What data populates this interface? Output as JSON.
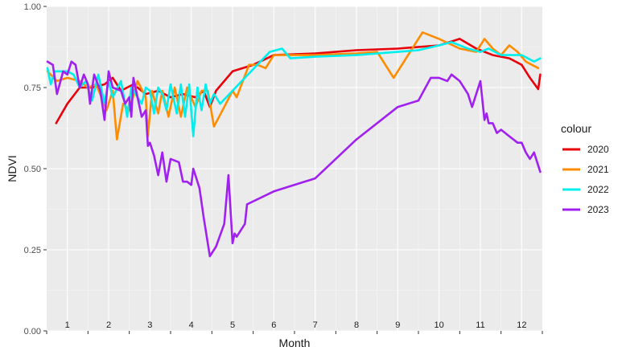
{
  "chart_data": {
    "type": "line",
    "xlabel": "Month",
    "ylabel": "NDVI",
    "xlim": [
      0.5,
      12.5
    ],
    "ylim": [
      0,
      1
    ],
    "x_ticks": [
      1,
      2,
      3,
      4,
      5,
      6,
      7,
      8,
      9,
      10,
      11,
      12
    ],
    "x_tick_labels": [
      "1",
      "2",
      "3",
      "4",
      "5",
      "6",
      "7",
      "8",
      "9",
      "10",
      "11",
      "12"
    ],
    "y_ticks": [
      0,
      0.25,
      0.5,
      0.75,
      1
    ],
    "y_tick_labels": [
      "0.00",
      "0.25",
      "0.50",
      "0.75",
      "1.00"
    ],
    "grid": true,
    "legend_title": "colour",
    "legend_position": "right",
    "series": [
      {
        "name": "2020",
        "color": "#e8000b",
        "points": [
          [
            0.73,
            0.64
          ],
          [
            1.0,
            0.7
          ],
          [
            1.3,
            0.75
          ],
          [
            1.6,
            0.75
          ],
          [
            1.9,
            0.76
          ],
          [
            2.1,
            0.78
          ],
          [
            2.3,
            0.74
          ],
          [
            2.6,
            0.76
          ],
          [
            2.9,
            0.73
          ],
          [
            3.2,
            0.74
          ],
          [
            3.5,
            0.72
          ],
          [
            3.8,
            0.73
          ],
          [
            4.1,
            0.72
          ],
          [
            4.3,
            0.74
          ],
          [
            4.45,
            0.69
          ],
          [
            4.6,
            0.74
          ],
          [
            5.0,
            0.8
          ],
          [
            5.5,
            0.82
          ],
          [
            6.0,
            0.85
          ],
          [
            7.0,
            0.855
          ],
          [
            8.0,
            0.865
          ],
          [
            9.0,
            0.87
          ],
          [
            10.0,
            0.88
          ],
          [
            10.5,
            0.9
          ],
          [
            10.9,
            0.87
          ],
          [
            11.3,
            0.85
          ],
          [
            11.7,
            0.84
          ],
          [
            12.0,
            0.82
          ],
          [
            12.2,
            0.78
          ],
          [
            12.4,
            0.745
          ],
          [
            12.45,
            0.79
          ]
        ]
      },
      {
        "name": "2021",
        "color": "#ff8c00",
        "points": [
          [
            0.52,
            0.8
          ],
          [
            0.75,
            0.77
          ],
          [
            1.0,
            0.78
          ],
          [
            1.3,
            0.77
          ],
          [
            1.5,
            0.75
          ],
          [
            1.7,
            0.76
          ],
          [
            1.95,
            0.68
          ],
          [
            2.1,
            0.74
          ],
          [
            2.2,
            0.59
          ],
          [
            2.35,
            0.7
          ],
          [
            2.5,
            0.68
          ],
          [
            2.7,
            0.77
          ],
          [
            2.9,
            0.72
          ],
          [
            2.95,
            0.6
          ],
          [
            3.05,
            0.74
          ],
          [
            3.2,
            0.67
          ],
          [
            3.3,
            0.74
          ],
          [
            3.45,
            0.66
          ],
          [
            3.6,
            0.75
          ],
          [
            3.75,
            0.66
          ],
          [
            3.9,
            0.75
          ],
          [
            4.1,
            0.69
          ],
          [
            4.25,
            0.74
          ],
          [
            4.4,
            0.74
          ],
          [
            4.55,
            0.63
          ],
          [
            4.8,
            0.69
          ],
          [
            5.0,
            0.74
          ],
          [
            5.1,
            0.72
          ],
          [
            5.4,
            0.82
          ],
          [
            5.6,
            0.82
          ],
          [
            5.8,
            0.81
          ],
          [
            6.0,
            0.85
          ],
          [
            7.0,
            0.85
          ],
          [
            8.0,
            0.855
          ],
          [
            8.5,
            0.86
          ],
          [
            8.9,
            0.78
          ],
          [
            9.3,
            0.86
          ],
          [
            9.6,
            0.92
          ],
          [
            10.0,
            0.9
          ],
          [
            10.5,
            0.87
          ],
          [
            10.9,
            0.86
          ],
          [
            11.1,
            0.9
          ],
          [
            11.3,
            0.87
          ],
          [
            11.5,
            0.85
          ],
          [
            11.7,
            0.88
          ],
          [
            11.9,
            0.86
          ],
          [
            12.1,
            0.83
          ],
          [
            12.4,
            0.81
          ]
        ]
      },
      {
        "name": "2022",
        "color": "#00eeee",
        "points": [
          [
            0.52,
            0.81
          ],
          [
            0.6,
            0.76
          ],
          [
            0.7,
            0.8
          ],
          [
            1.0,
            0.8
          ],
          [
            1.15,
            0.79
          ],
          [
            1.3,
            0.75
          ],
          [
            1.45,
            0.77
          ],
          [
            1.6,
            0.71
          ],
          [
            1.75,
            0.79
          ],
          [
            1.9,
            0.7
          ],
          [
            2.0,
            0.77
          ],
          [
            2.1,
            0.72
          ],
          [
            2.3,
            0.77
          ],
          [
            2.45,
            0.66
          ],
          [
            2.55,
            0.75
          ],
          [
            2.7,
            0.72
          ],
          [
            2.8,
            0.7
          ],
          [
            2.9,
            0.75
          ],
          [
            3.0,
            0.74
          ],
          [
            3.1,
            0.67
          ],
          [
            3.2,
            0.75
          ],
          [
            3.3,
            0.73
          ],
          [
            3.4,
            0.68
          ],
          [
            3.5,
            0.76
          ],
          [
            3.65,
            0.67
          ],
          [
            3.75,
            0.76
          ],
          [
            3.85,
            0.66
          ],
          [
            3.95,
            0.76
          ],
          [
            4.05,
            0.6
          ],
          [
            4.15,
            0.75
          ],
          [
            4.25,
            0.68
          ],
          [
            4.35,
            0.76
          ],
          [
            4.45,
            0.7
          ],
          [
            4.55,
            0.73
          ],
          [
            4.7,
            0.7
          ],
          [
            5.0,
            0.74
          ],
          [
            5.3,
            0.78
          ],
          [
            5.6,
            0.82
          ],
          [
            5.9,
            0.86
          ],
          [
            6.2,
            0.87
          ],
          [
            6.4,
            0.84
          ],
          [
            7.0,
            0.845
          ],
          [
            8.0,
            0.85
          ],
          [
            9.0,
            0.86
          ],
          [
            9.5,
            0.865
          ],
          [
            10.0,
            0.88
          ],
          [
            10.3,
            0.89
          ],
          [
            10.7,
            0.87
          ],
          [
            11.0,
            0.86
          ],
          [
            11.2,
            0.87
          ],
          [
            11.5,
            0.85
          ],
          [
            11.8,
            0.85
          ],
          [
            12.0,
            0.85
          ],
          [
            12.3,
            0.83
          ],
          [
            12.45,
            0.84
          ]
        ]
      },
      {
        "name": "2023",
        "color": "#a020f0",
        "points": [
          [
            0.52,
            0.83
          ],
          [
            0.65,
            0.82
          ],
          [
            0.75,
            0.73
          ],
          [
            0.9,
            0.8
          ],
          [
            1.0,
            0.79
          ],
          [
            1.1,
            0.83
          ],
          [
            1.2,
            0.82
          ],
          [
            1.3,
            0.75
          ],
          [
            1.4,
            0.79
          ],
          [
            1.5,
            0.76
          ],
          [
            1.55,
            0.7
          ],
          [
            1.65,
            0.79
          ],
          [
            1.8,
            0.74
          ],
          [
            1.9,
            0.65
          ],
          [
            2.0,
            0.8
          ],
          [
            2.1,
            0.75
          ],
          [
            2.3,
            0.74
          ],
          [
            2.4,
            0.7
          ],
          [
            2.5,
            0.72
          ],
          [
            2.55,
            0.66
          ],
          [
            2.6,
            0.78
          ],
          [
            2.8,
            0.66
          ],
          [
            2.9,
            0.68
          ],
          [
            2.95,
            0.57
          ],
          [
            3.0,
            0.58
          ],
          [
            3.1,
            0.54
          ],
          [
            3.2,
            0.48
          ],
          [
            3.3,
            0.55
          ],
          [
            3.4,
            0.46
          ],
          [
            3.5,
            0.53
          ],
          [
            3.7,
            0.52
          ],
          [
            3.8,
            0.46
          ],
          [
            3.9,
            0.46
          ],
          [
            4.0,
            0.45
          ],
          [
            4.05,
            0.5
          ],
          [
            4.2,
            0.44
          ],
          [
            4.3,
            0.35
          ],
          [
            4.45,
            0.23
          ],
          [
            4.6,
            0.26
          ],
          [
            4.8,
            0.33
          ],
          [
            4.9,
            0.48
          ],
          [
            5.0,
            0.27
          ],
          [
            5.05,
            0.3
          ],
          [
            5.1,
            0.29
          ],
          [
            5.3,
            0.33
          ],
          [
            5.35,
            0.39
          ],
          [
            6.0,
            0.43
          ],
          [
            7.0,
            0.47
          ],
          [
            8.0,
            0.59
          ],
          [
            9.0,
            0.69
          ],
          [
            9.5,
            0.71
          ],
          [
            9.8,
            0.78
          ],
          [
            10.0,
            0.78
          ],
          [
            10.2,
            0.77
          ],
          [
            10.3,
            0.79
          ],
          [
            10.5,
            0.77
          ],
          [
            10.7,
            0.73
          ],
          [
            10.8,
            0.69
          ],
          [
            11.0,
            0.77
          ],
          [
            11.1,
            0.65
          ],
          [
            11.15,
            0.67
          ],
          [
            11.2,
            0.64
          ],
          [
            11.3,
            0.64
          ],
          [
            11.4,
            0.61
          ],
          [
            11.5,
            0.62
          ],
          [
            11.7,
            0.6
          ],
          [
            11.9,
            0.58
          ],
          [
            12.0,
            0.58
          ],
          [
            12.1,
            0.55
          ],
          [
            12.2,
            0.53
          ],
          [
            12.3,
            0.55
          ],
          [
            12.45,
            0.49
          ]
        ]
      }
    ]
  }
}
